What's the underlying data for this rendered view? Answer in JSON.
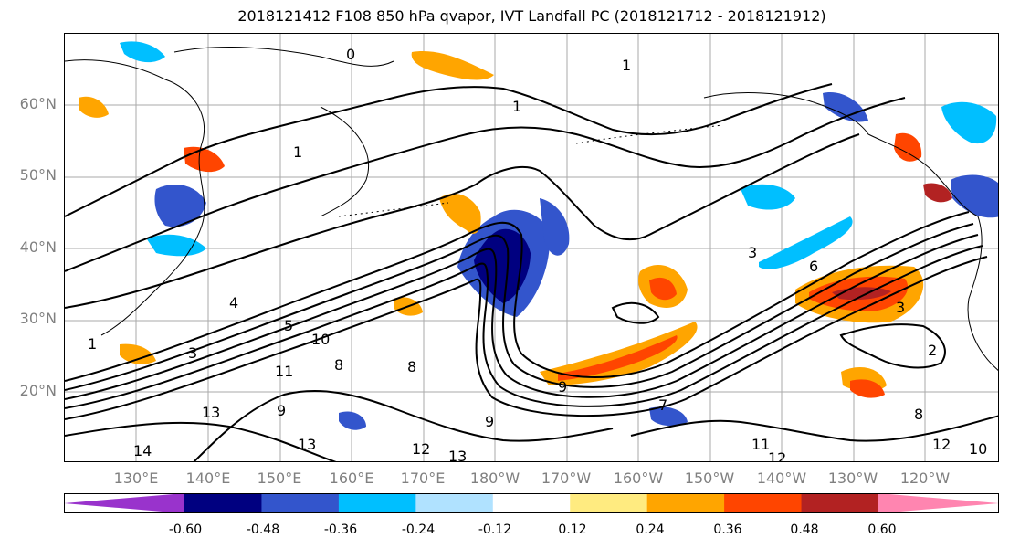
{
  "title": "2018121412 F108 850 hPa qvapor, IVT Landfall PC (2018121712 - 2018121912)",
  "map": {
    "lat_labels": [
      "60°N",
      "50°N",
      "40°N",
      "30°N",
      "20°N"
    ],
    "lon_labels": [
      "130°E",
      "140°E",
      "150°E",
      "160°E",
      "170°E",
      "180°W",
      "170°W",
      "160°W",
      "150°W",
      "140°W",
      "130°W",
      "120°W"
    ],
    "contour_labels": [
      "0",
      "1",
      "1",
      "1",
      "1",
      "2",
      "3",
      "3",
      "3",
      "4",
      "5",
      "6",
      "7",
      "8",
      "8",
      "8",
      "9",
      "9",
      "9",
      "10",
      "10",
      "11",
      "11",
      "12",
      "12",
      "12",
      "13",
      "13",
      "13",
      "14"
    ]
  },
  "colorbar": {
    "colors": [
      "#9933cc",
      "#000080",
      "#3355cc",
      "#00bfff",
      "#b0e2ff",
      "#ffffff",
      "#ffeb80",
      "#ffa500",
      "#ff4500",
      "#b22222",
      "#ff85b0"
    ],
    "ticks": [
      "-0.60",
      "-0.48",
      "-0.36",
      "-0.24",
      "-0.12",
      "0.12",
      "0.24",
      "0.36",
      "0.48",
      "0.60"
    ]
  }
}
